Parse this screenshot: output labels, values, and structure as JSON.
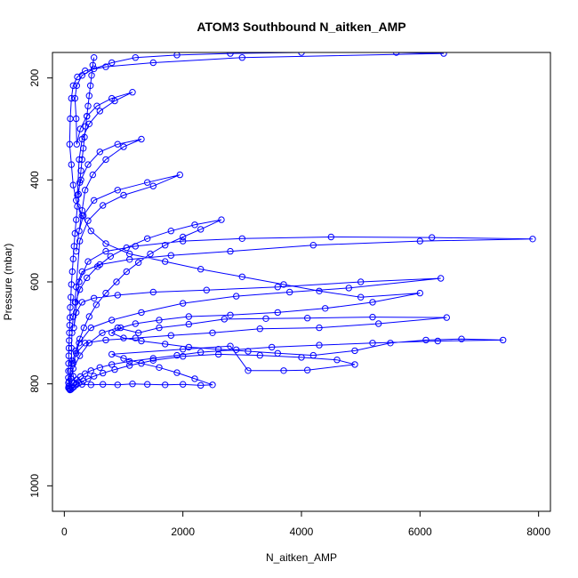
{
  "chart_data": {
    "type": "line",
    "title": "ATOM3 Southbound N_aitken_AMP",
    "xlabel": "N_aitken_AMP",
    "ylabel": "Pressure (mbar)",
    "xlim": [
      -200,
      8200
    ],
    "ylim": [
      1050,
      150
    ],
    "y_reversed": true,
    "x_ticks": [
      0,
      2000,
      4000,
      6000,
      8000
    ],
    "y_ticks": [
      200,
      400,
      600,
      800,
      1000
    ],
    "grid": false,
    "legend": "none",
    "series": [
      {
        "color": "#0000ff",
        "marker": "open-circle",
        "points": [
          [
            70,
            808
          ],
          [
            110,
            790
          ],
          [
            150,
            770
          ],
          [
            260,
            745
          ],
          [
            420,
            720
          ],
          [
            640,
            700
          ],
          [
            900,
            690
          ],
          [
            1250,
            700
          ],
          [
            1600,
            690
          ],
          [
            2100,
            683
          ],
          [
            2700,
            673
          ],
          [
            3400,
            672
          ],
          [
            4100,
            671
          ],
          [
            5200,
            669
          ],
          [
            6450,
            670
          ],
          [
            5300,
            682
          ],
          [
            4300,
            690
          ],
          [
            3300,
            692
          ],
          [
            2500,
            700
          ],
          [
            1800,
            705
          ],
          [
            1200,
            710
          ],
          [
            700,
            714
          ],
          [
            350,
            720
          ],
          [
            200,
            740
          ],
          [
            150,
            760
          ],
          [
            250,
            720
          ],
          [
            450,
            690
          ],
          [
            800,
            675
          ],
          [
            1300,
            660
          ],
          [
            2000,
            642
          ],
          [
            2900,
            628
          ],
          [
            3800,
            620
          ],
          [
            4800,
            612
          ],
          [
            6350,
            593
          ],
          [
            5000,
            600
          ],
          [
            3600,
            610
          ],
          [
            2400,
            616
          ],
          [
            1500,
            620
          ],
          [
            900,
            626
          ],
          [
            500,
            632
          ],
          [
            300,
            640
          ],
          [
            200,
            660
          ],
          [
            160,
            690
          ],
          [
            250,
            600
          ],
          [
            400,
            560
          ],
          [
            700,
            540
          ],
          [
            1200,
            530
          ],
          [
            2000,
            520
          ],
          [
            3000,
            515
          ],
          [
            4500,
            512
          ],
          [
            6200,
            513
          ],
          [
            7900,
            516
          ],
          [
            6000,
            520
          ],
          [
            4200,
            528
          ],
          [
            2800,
            540
          ],
          [
            1800,
            548
          ],
          [
            1100,
            556
          ],
          [
            600,
            566
          ],
          [
            300,
            580
          ],
          [
            200,
            610
          ],
          [
            180,
            640
          ],
          [
            260,
            520
          ],
          [
            400,
            480
          ],
          [
            650,
            450
          ],
          [
            1000,
            430
          ],
          [
            1500,
            412
          ],
          [
            1950,
            390
          ],
          [
            1400,
            405
          ],
          [
            900,
            420
          ],
          [
            500,
            440
          ],
          [
            320,
            470
          ],
          [
            250,
            500
          ],
          [
            200,
            540
          ],
          [
            300,
            460
          ],
          [
            350,
            420
          ],
          [
            480,
            390
          ],
          [
            700,
            360
          ],
          [
            1000,
            335
          ],
          [
            1300,
            320
          ],
          [
            900,
            330
          ],
          [
            600,
            345
          ],
          [
            400,
            370
          ],
          [
            280,
            400
          ],
          [
            220,
            430
          ],
          [
            250,
            360
          ],
          [
            300,
            320
          ],
          [
            420,
            290
          ],
          [
            600,
            265
          ],
          [
            850,
            245
          ],
          [
            1150,
            228
          ],
          [
            800,
            240
          ],
          [
            550,
            255
          ],
          [
            380,
            275
          ],
          [
            270,
            300
          ],
          [
            210,
            330
          ],
          [
            200,
            280
          ],
          [
            180,
            240
          ],
          [
            210,
            215
          ],
          [
            300,
            195
          ],
          [
            500,
            182
          ],
          [
            800,
            170
          ],
          [
            1200,
            160
          ],
          [
            1900,
            155
          ],
          [
            2800,
            152
          ],
          [
            4000,
            150
          ],
          [
            5600,
            150
          ],
          [
            6400,
            152
          ],
          [
            3000,
            160
          ],
          [
            1500,
            170
          ],
          [
            700,
            178
          ],
          [
            350,
            186
          ],
          [
            220,
            198
          ],
          [
            150,
            215
          ],
          [
            120,
            240
          ],
          [
            100,
            280
          ],
          [
            90,
            330
          ],
          [
            120,
            370
          ],
          [
            150,
            410
          ],
          [
            200,
            440
          ],
          [
            300,
            470
          ],
          [
            450,
            500
          ],
          [
            700,
            525
          ],
          [
            1100,
            545
          ],
          [
            1700,
            560
          ],
          [
            2300,
            575
          ],
          [
            3000,
            590
          ],
          [
            3700,
            605
          ],
          [
            4300,
            618
          ],
          [
            5000,
            630
          ],
          [
            6000,
            622
          ],
          [
            5200,
            640
          ],
          [
            4400,
            652
          ],
          [
            3600,
            660
          ],
          [
            2800,
            665
          ],
          [
            2100,
            668
          ],
          [
            1600,
            675
          ],
          [
            1200,
            682
          ],
          [
            950,
            690
          ],
          [
            800,
            700
          ],
          [
            1000,
            710
          ],
          [
            1300,
            716
          ],
          [
            1700,
            722
          ],
          [
            2100,
            728
          ],
          [
            2600,
            732
          ],
          [
            3100,
            736
          ],
          [
            3600,
            740
          ],
          [
            4200,
            744
          ],
          [
            4900,
            735
          ],
          [
            5500,
            720
          ],
          [
            6100,
            714
          ],
          [
            6700,
            712
          ],
          [
            7400,
            714
          ],
          [
            6300,
            716
          ],
          [
            5200,
            720
          ],
          [
            4300,
            724
          ],
          [
            3500,
            728
          ],
          [
            2900,
            733
          ],
          [
            2300,
            738
          ],
          [
            1900,
            744
          ],
          [
            1500,
            750
          ],
          [
            1100,
            756
          ],
          [
            800,
            762
          ],
          [
            600,
            768
          ],
          [
            450,
            774
          ],
          [
            350,
            780
          ],
          [
            270,
            786
          ],
          [
            210,
            792
          ],
          [
            160,
            798
          ],
          [
            120,
            804
          ],
          [
            90,
            808
          ],
          [
            80,
            795
          ],
          [
            100,
            775
          ],
          [
            140,
            755
          ],
          [
            190,
            735
          ],
          [
            260,
            712
          ],
          [
            330,
            690
          ],
          [
            420,
            668
          ],
          [
            540,
            645
          ],
          [
            700,
            622
          ],
          [
            880,
            600
          ],
          [
            1050,
            580
          ],
          [
            1250,
            562
          ],
          [
            1450,
            545
          ],
          [
            1700,
            528
          ],
          [
            2000,
            512
          ],
          [
            2300,
            497
          ],
          [
            2650,
            478
          ],
          [
            2200,
            488
          ],
          [
            1800,
            500
          ],
          [
            1400,
            515
          ],
          [
            1050,
            533
          ],
          [
            780,
            550
          ],
          [
            560,
            570
          ],
          [
            380,
            592
          ],
          [
            260,
            615
          ],
          [
            190,
            640
          ],
          [
            150,
            668
          ],
          [
            130,
            700
          ],
          [
            120,
            730
          ],
          [
            125,
            760
          ],
          [
            150,
            785
          ],
          [
            200,
            800
          ],
          [
            300,
            801
          ],
          [
            450,
            802
          ],
          [
            650,
            801
          ],
          [
            900,
            802
          ],
          [
            1150,
            800
          ],
          [
            1400,
            801
          ],
          [
            1700,
            802
          ],
          [
            2000,
            801
          ],
          [
            2300,
            803
          ],
          [
            2500,
            802
          ],
          [
            2200,
            790
          ],
          [
            1900,
            778
          ],
          [
            1600,
            768
          ],
          [
            1300,
            760
          ],
          [
            1000,
            750
          ],
          [
            800,
            742
          ],
          [
            2000,
            732
          ],
          [
            2800,
            726
          ],
          [
            3100,
            774
          ],
          [
            3700,
            774
          ],
          [
            4100,
            773
          ],
          [
            4900,
            762
          ],
          [
            4600,
            753
          ],
          [
            4000,
            748
          ],
          [
            3300,
            744
          ],
          [
            2600,
            742
          ],
          [
            2000,
            746
          ],
          [
            1500,
            754
          ],
          [
            1100,
            764
          ],
          [
            850,
            772
          ],
          [
            650,
            779
          ],
          [
            500,
            785
          ],
          [
            400,
            790
          ],
          [
            320,
            794
          ],
          [
            250,
            798
          ],
          [
            200,
            802
          ],
          [
            160,
            806
          ],
          [
            130,
            809
          ],
          [
            110,
            811
          ],
          [
            95,
            812
          ],
          [
            85,
            810
          ],
          [
            75,
            805
          ],
          [
            70,
            798
          ],
          [
            68,
            788
          ],
          [
            70,
            775
          ],
          [
            72,
            760
          ],
          [
            74,
            745
          ],
          [
            78,
            730
          ],
          [
            82,
            715
          ],
          [
            85,
            700
          ],
          [
            90,
            685
          ],
          [
            95,
            670
          ],
          [
            100,
            650
          ],
          [
            110,
            630
          ],
          [
            120,
            605
          ],
          [
            135,
            580
          ],
          [
            150,
            555
          ],
          [
            165,
            530
          ],
          [
            180,
            505
          ],
          [
            200,
            478
          ],
          [
            220,
            452
          ],
          [
            240,
            428
          ],
          [
            260,
            405
          ],
          [
            280,
            382
          ],
          [
            300,
            360
          ],
          [
            320,
            338
          ],
          [
            340,
            316
          ],
          [
            360,
            295
          ],
          [
            380,
            275
          ],
          [
            400,
            255
          ],
          [
            420,
            235
          ],
          [
            440,
            215
          ],
          [
            460,
            195
          ],
          [
            480,
            175
          ],
          [
            500,
            160
          ]
        ]
      }
    ]
  }
}
